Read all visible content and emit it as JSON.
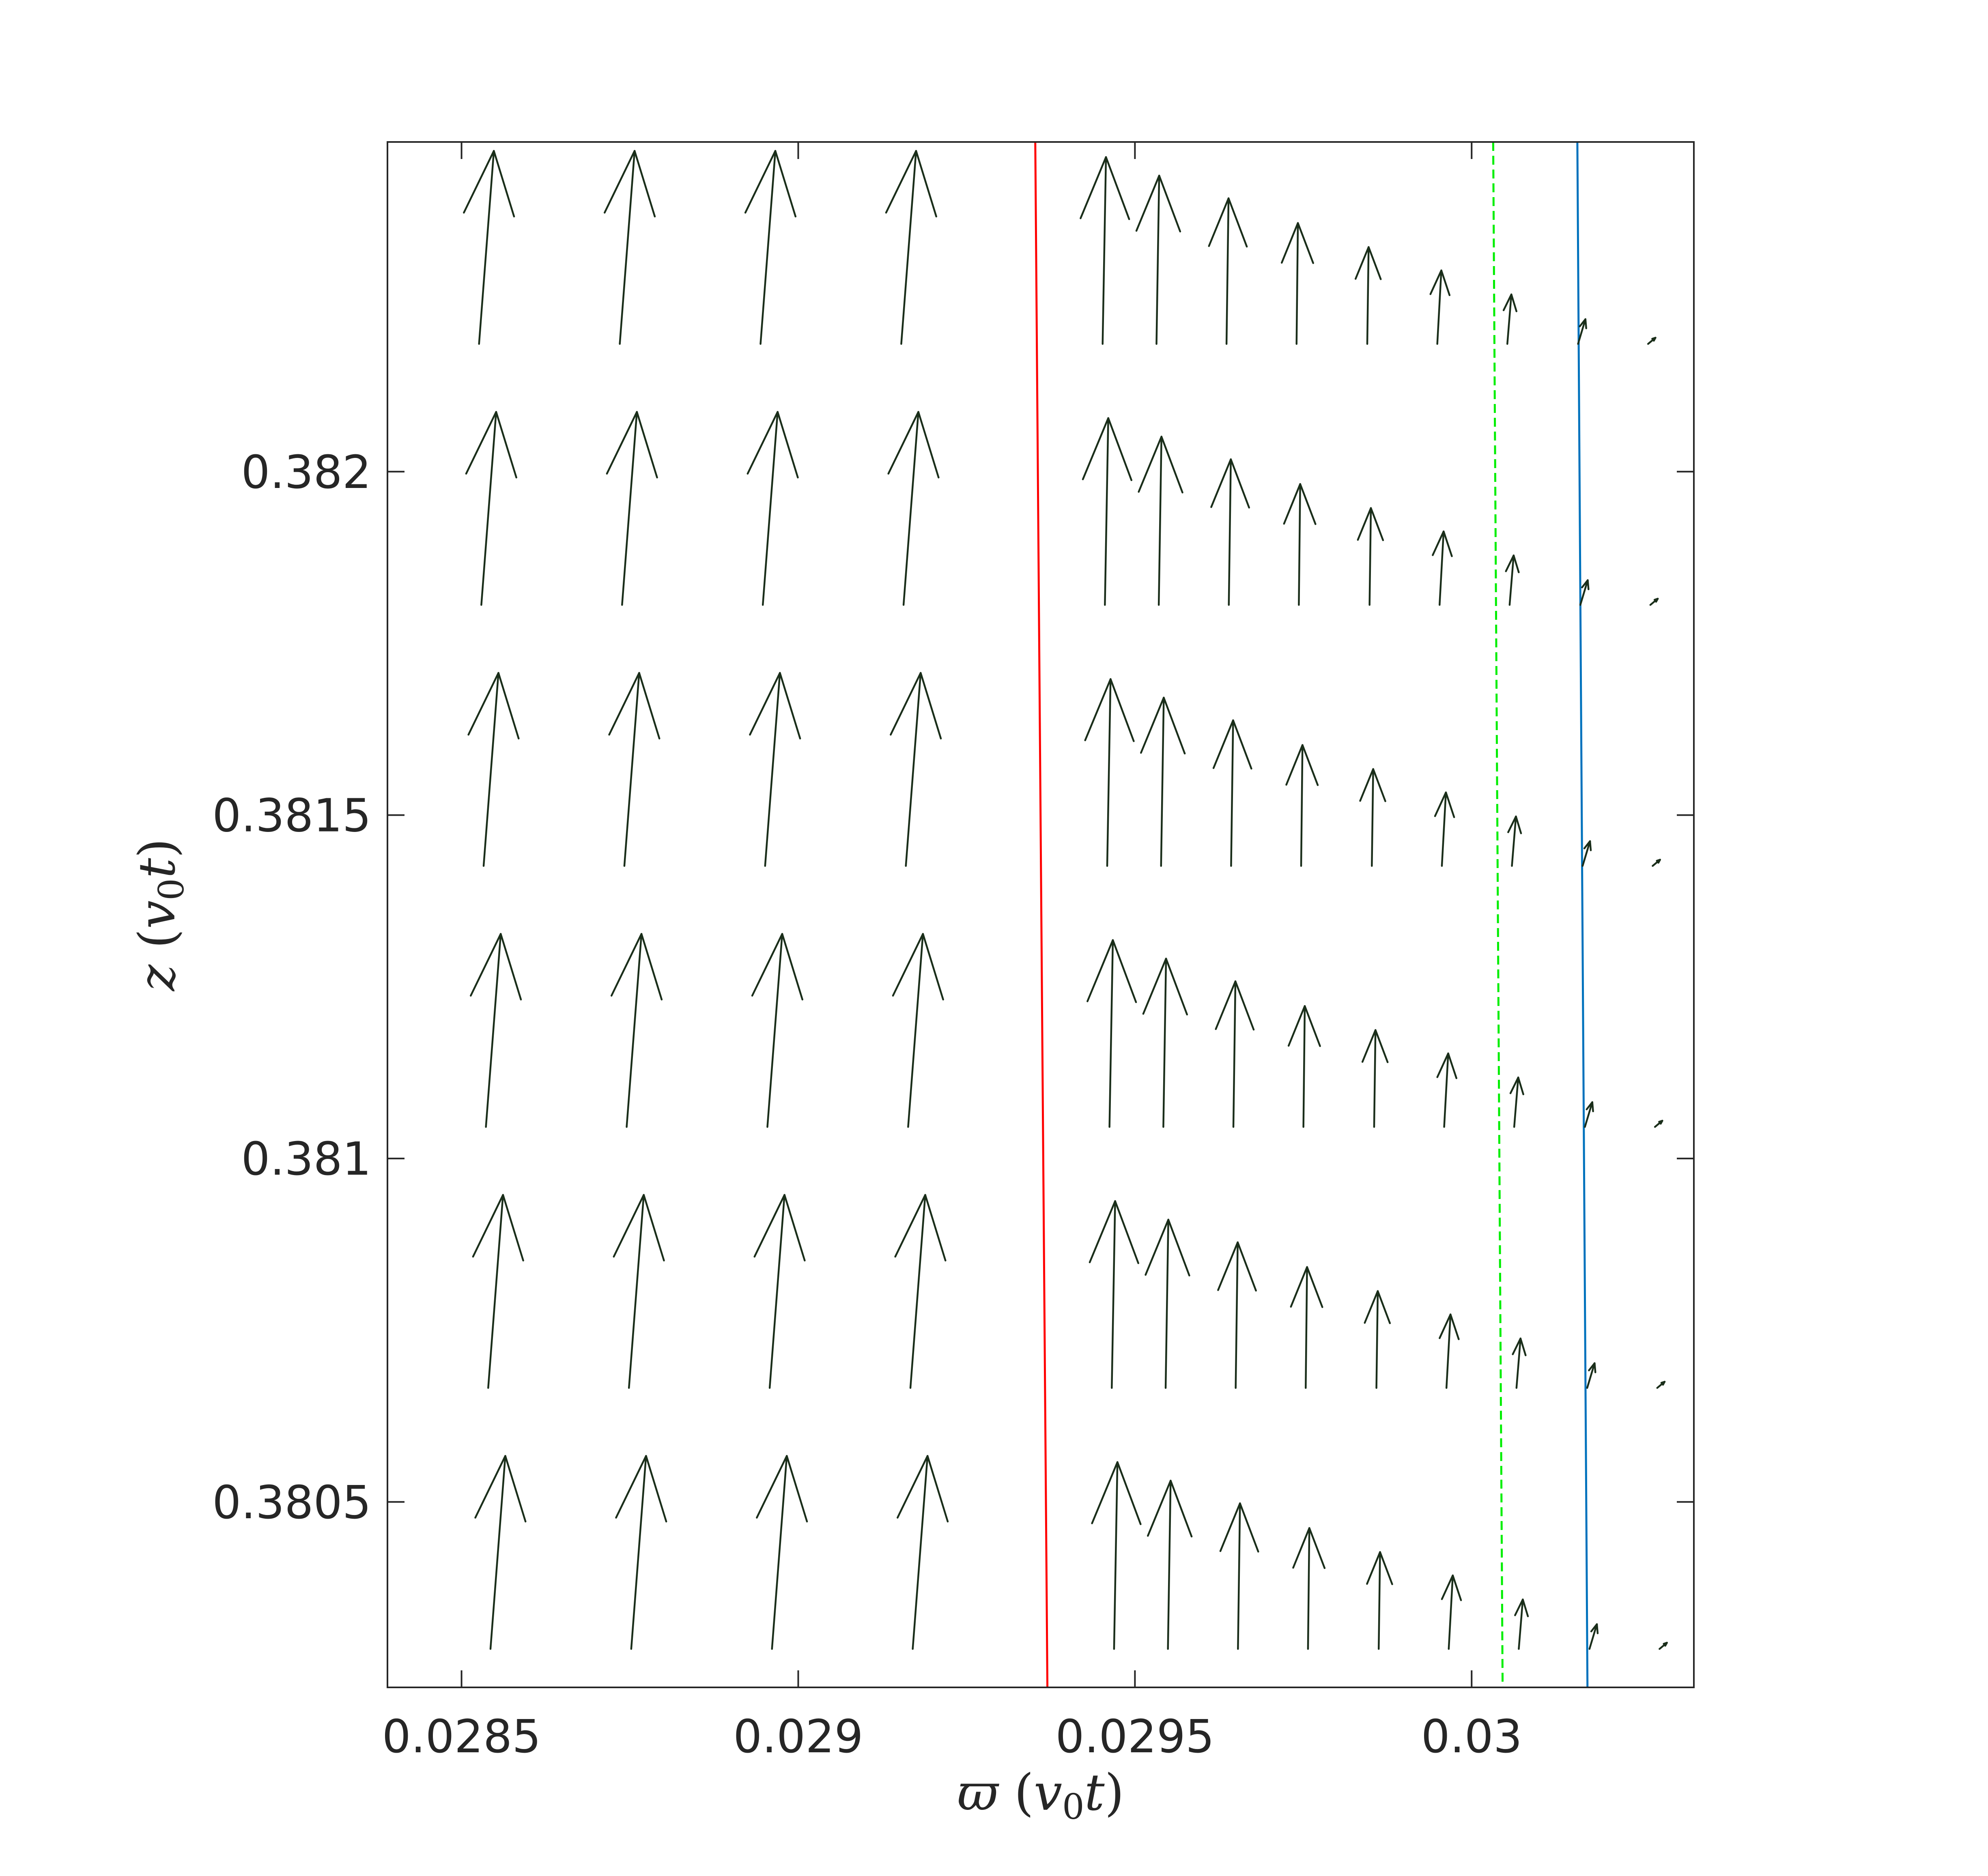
{
  "chart_data": {
    "type": "quiver",
    "xlabel": "ϖ (v₀t)",
    "ylabel": "z (v₀t)",
    "xlim": [
      0.02839,
      0.03033
    ],
    "ylim": [
      0.38023,
      0.38248
    ],
    "xticks": [
      {
        "value": 0.0285,
        "label": "0.0285"
      },
      {
        "value": 0.029,
        "label": "0.029"
      },
      {
        "value": 0.0295,
        "label": "0.0295"
      },
      {
        "value": 0.03,
        "label": "0.03"
      }
    ],
    "yticks": [
      {
        "value": 0.3805,
        "label": "0.3805"
      },
      {
        "value": 0.381,
        "label": "0.381"
      },
      {
        "value": 0.3815,
        "label": "0.3815"
      },
      {
        "value": 0.382,
        "label": "0.382"
      }
    ],
    "grid": false,
    "arrow_color": "#1a2e1a",
    "quiver": {
      "row_base_z": [
        0.382186,
        0.381806,
        0.381426,
        0.381046,
        0.380666,
        0.380286
      ],
      "row_base_x_shift": [
        0.0,
        3.4e-06,
        6.8e-06,
        1.02e-05,
        1.36e-05,
        1.7e-05
      ],
      "col_base_x": [
        0.028526,
        0.028735,
        0.028944,
        0.029153,
        0.029452,
        0.029532,
        0.029636,
        0.02974,
        0.029845,
        0.029949,
        0.030053,
        0.030158,
        0.030262
      ],
      "col_dx": [
        2.2e-05,
        2.2e-05,
        2.2e-05,
        2.2e-05,
        5e-06,
        4e-06,
        3e-06,
        2e-06,
        2e-06,
        6e-06,
        6e-06,
        1.1e-05,
        1.1e-05
      ],
      "col_dz": [
        0.000281,
        0.000281,
        0.000281,
        0.000281,
        0.000272,
        0.000245,
        0.000212,
        0.000176,
        0.000141,
        0.000107,
        7.2e-05,
        3.6e-05,
        9e-06
      ]
    },
    "lines": [
      {
        "color": "#ff0000",
        "style": "solid",
        "x": [
          0.029352,
          0.02937
        ],
        "z": [
          0.38248,
          0.38023
        ]
      },
      {
        "color": "#00ee00",
        "style": "dashed",
        "x": [
          0.030032,
          0.030046
        ],
        "z": [
          0.38248,
          0.38023
        ]
      },
      {
        "color": "#0072bd",
        "style": "solid",
        "x": [
          0.030157,
          0.030172
        ],
        "z": [
          0.38248,
          0.38023
        ]
      }
    ]
  }
}
